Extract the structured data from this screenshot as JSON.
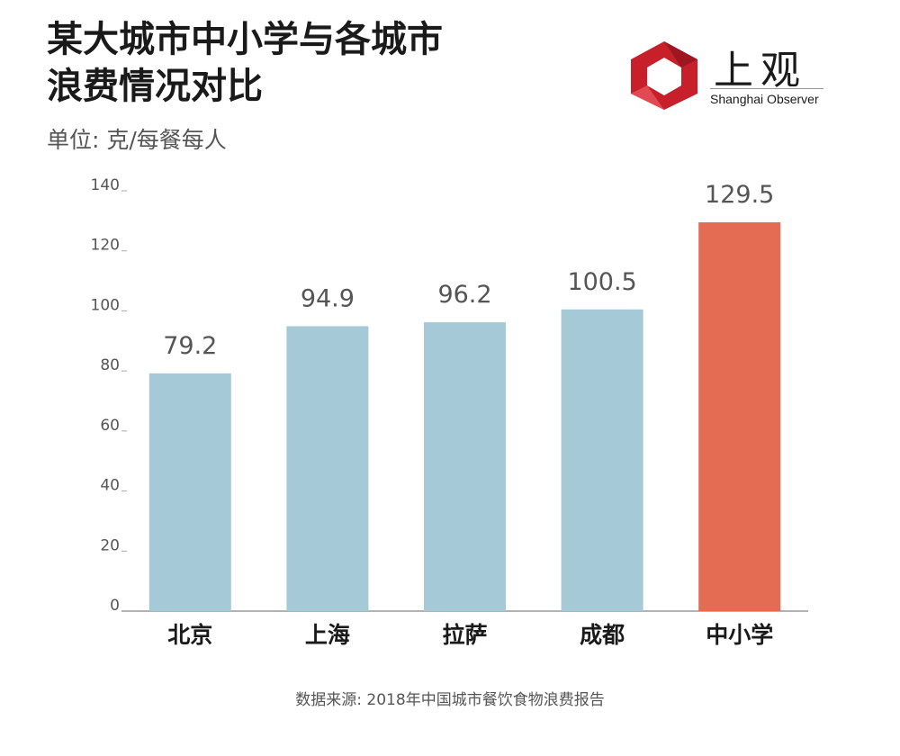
{
  "title_lines": [
    "某大城市中小学与各城市",
    "浪费情况对比"
  ],
  "unit": "单位: 克/每餐每人",
  "logo": {
    "name": "上观",
    "subtitle": "Shanghai Observer",
    "color": "#c8202b"
  },
  "source": "数据来源: 2018年中国城市餐饮食物浪费报告",
  "chart_data": {
    "type": "bar",
    "categories": [
      "北京",
      "上海",
      "拉萨",
      "成都",
      "中小学"
    ],
    "values": [
      79.2,
      94.9,
      96.2,
      100.5,
      129.5
    ],
    "value_labels": [
      "79.2",
      "94.9",
      "96.2",
      "100.5",
      "129.5"
    ],
    "bar_colors": [
      "#a5c9d6",
      "#a5c9d6",
      "#a5c9d6",
      "#a5c9d6",
      "#e36c53"
    ],
    "ylim": [
      0,
      140
    ],
    "yticks": [
      0,
      20,
      40,
      60,
      80,
      100,
      120,
      140
    ],
    "grid": false,
    "legend": "none"
  }
}
